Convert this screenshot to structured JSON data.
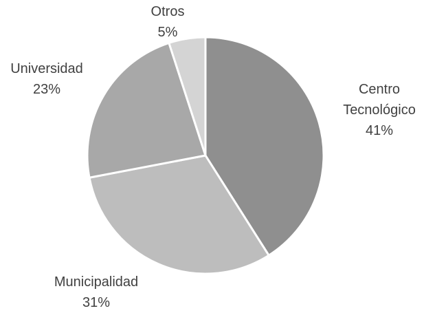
{
  "chart_data": {
    "type": "pie",
    "categories": [
      "Centro Tecnológico",
      "Municipalidad",
      "Universidad",
      "Otros"
    ],
    "values": [
      41,
      31,
      23,
      5
    ],
    "value_labels": [
      "41%",
      "31%",
      "23%",
      "5%"
    ],
    "colors": [
      "#8f8f8f",
      "#bdbdbd",
      "#a8a8a8",
      "#d4d4d4"
    ]
  }
}
